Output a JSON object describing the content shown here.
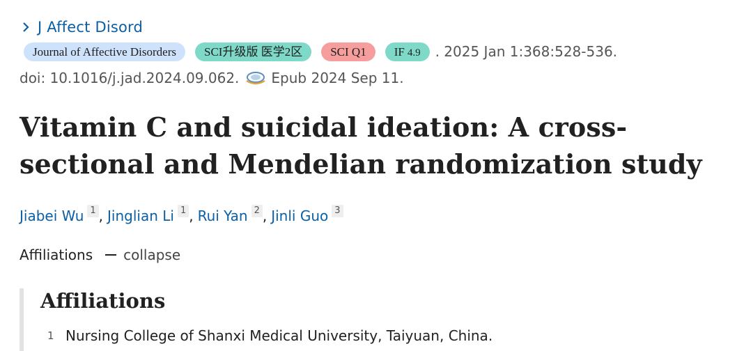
{
  "journal": {
    "abbrev": "J Affect Disord",
    "icon": "chevron-right-icon",
    "link_color": "#0b5fa5"
  },
  "badges": {
    "journal_full": "Journal of Affective Disorders",
    "sci_upgrade": "SCI升级版 医学2区",
    "sci_q": "SCI Q1",
    "if_label": "IF",
    "if_value": "4.9"
  },
  "citation": {
    "issue": ". 2025 Jan 1:368:528-536.",
    "doi": "doi: 10.1016/j.jad.2024.09.062.",
    "epub": "Epub 2024 Sep 11.",
    "epub_icon": "epub-icon"
  },
  "article": {
    "title": "Vitamin C and suicidal ideation: A cross-sectional and Mendelian randomization study"
  },
  "authors": [
    {
      "name": "Jiabei Wu",
      "aff": "1"
    },
    {
      "name": "Jinglian Li",
      "aff": "1"
    },
    {
      "name": "Rui Yan",
      "aff": "2"
    },
    {
      "name": "Jinli Guo",
      "aff": "3"
    }
  ],
  "separator": ",",
  "affiliations": {
    "toggle_label": "Affiliations",
    "collapse_label": "collapse",
    "heading": "Affiliations",
    "items": [
      {
        "num": "1",
        "text": "Nursing College of Shanxi Medical University, Taiyuan, China."
      }
    ]
  },
  "colors": {
    "badge_journal": "#cfe2fb",
    "badge_sci": "#7fd9c8",
    "badge_q1": "#f69d9d",
    "badge_if": "#7fd9c8"
  }
}
